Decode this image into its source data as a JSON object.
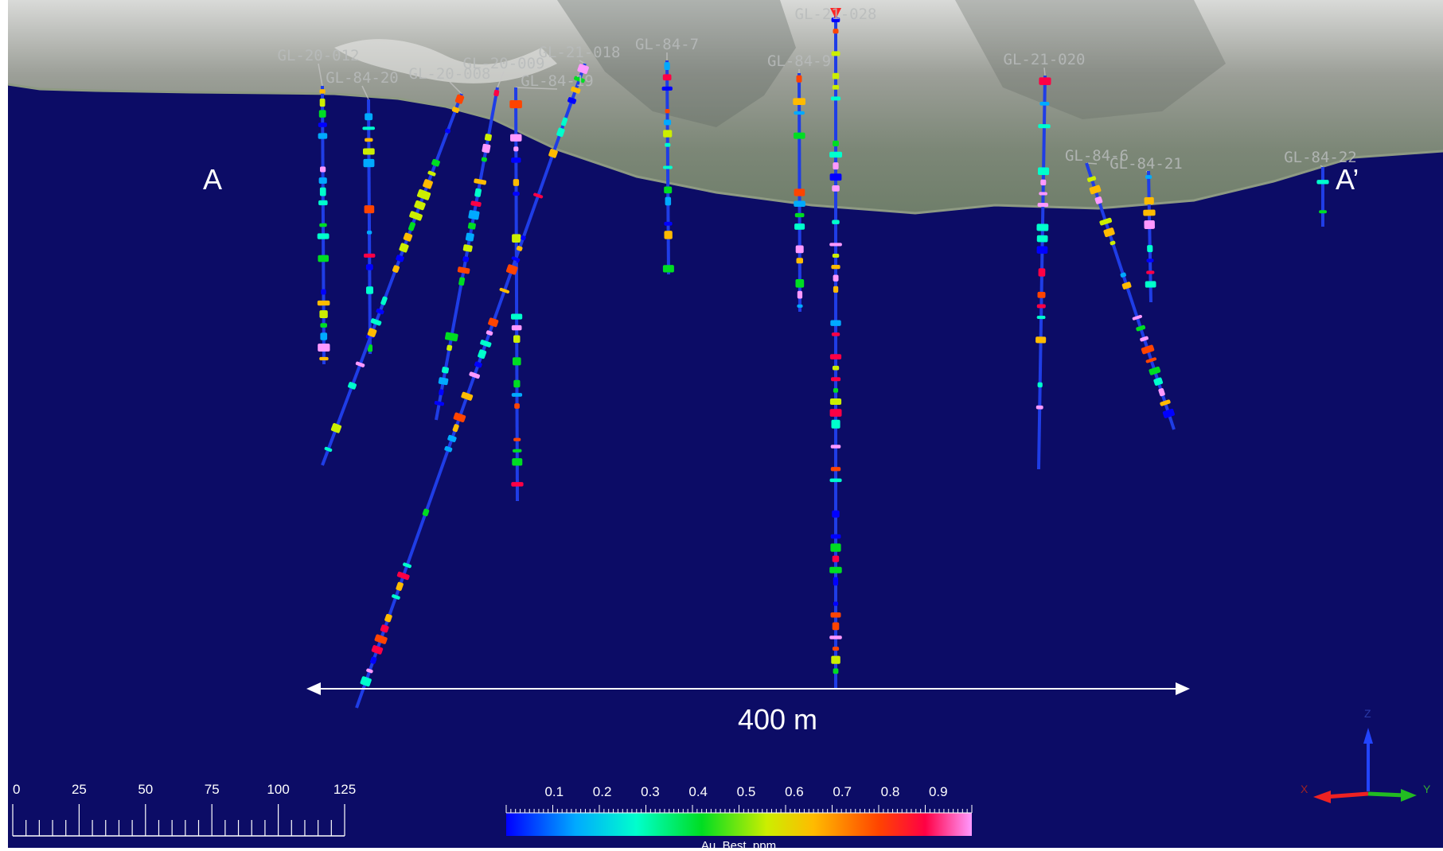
{
  "section": {
    "start_label": "A",
    "end_label": "A’"
  },
  "distance": {
    "label": "400 m"
  },
  "drill_holes": [
    "GL-20-012",
    "GL-84-20",
    "GL-20-008",
    "GL-20-009",
    "GL-84-19",
    "GL-21-018",
    "GL-84-7",
    "GL-84-9",
    "GL-21-028",
    "GL-21-020",
    "GL-84-6",
    "GL-84-21",
    "GL-84-22"
  ],
  "scale_bar": {
    "ticks": [
      "0",
      "25",
      "50",
      "75",
      "100",
      "125"
    ]
  },
  "legend": {
    "title": "Au_Best_ppm",
    "ticks": [
      "0.1",
      "0.2",
      "0.3",
      "0.4",
      "0.5",
      "0.6",
      "0.7",
      "0.8",
      "0.9"
    ],
    "min_color": "#0000ff",
    "max_color": "#ff99ff"
  },
  "axes_triad": {
    "z": "Z",
    "x": "X",
    "y": "Y"
  },
  "colors": {
    "background": "#0c0c66",
    "hole_trace": "#1f3de6",
    "collar_marker": "#ff2222"
  }
}
